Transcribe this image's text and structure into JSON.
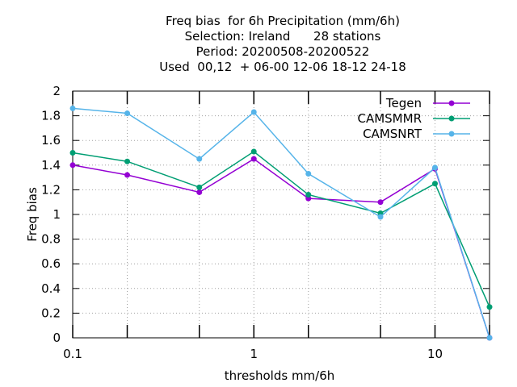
{
  "chart_data": {
    "type": "line",
    "title_lines": [
      "Freq bias  for 6h Precipitation (mm/6h)",
      "Selection: Ireland      28 stations",
      "Period: 20200508-20200522",
      "Used  00,12  + 06-00 12-06 18-12 24-18"
    ],
    "xlabel": "thresholds mm/6h",
    "ylabel": "Freq bias",
    "x_scale": "log",
    "xlim": [
      0.1,
      20
    ],
    "ylim": [
      0,
      2
    ],
    "x_ticks": [
      {
        "value": 0.1,
        "label": "0.1"
      },
      {
        "value": 0.2,
        "label": ""
      },
      {
        "value": 0.5,
        "label": ""
      },
      {
        "value": 1,
        "label": "1"
      },
      {
        "value": 2,
        "label": ""
      },
      {
        "value": 5,
        "label": ""
      },
      {
        "value": 10,
        "label": "10"
      },
      {
        "value": 20,
        "label": ""
      }
    ],
    "y_ticks": [
      "0",
      "0.2",
      "0.4",
      "0.6",
      "0.8",
      "1",
      "1.2",
      "1.4",
      "1.6",
      "1.8",
      "2"
    ],
    "grid": true,
    "legend_position": "top-right",
    "x": [
      0.1,
      0.2,
      0.5,
      1,
      2,
      5,
      10,
      20
    ],
    "series": [
      {
        "name": "Tegen",
        "color": "#9400d3",
        "values": [
          1.4,
          1.32,
          1.18,
          1.45,
          1.13,
          1.1,
          1.37,
          0.0
        ]
      },
      {
        "name": "CAMSMMR",
        "color": "#009e73",
        "values": [
          1.5,
          1.43,
          1.22,
          1.51,
          1.16,
          1.01,
          1.25,
          0.25
        ]
      },
      {
        "name": "CAMSNRT",
        "color": "#56b4e9",
        "values": [
          1.86,
          1.82,
          1.45,
          1.83,
          1.33,
          0.98,
          1.38,
          0.0
        ]
      }
    ]
  }
}
